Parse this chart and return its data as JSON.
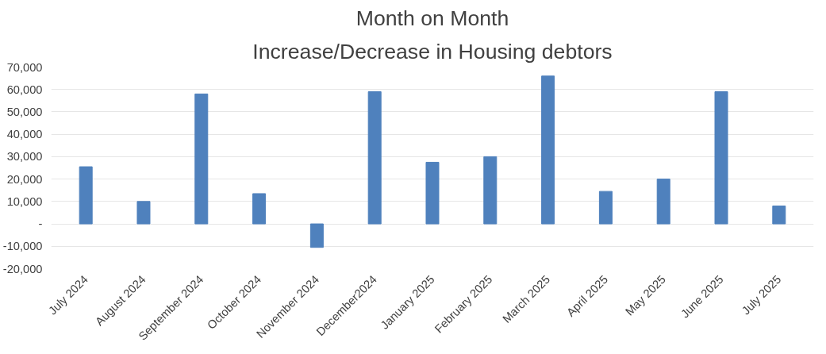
{
  "chart_data": {
    "type": "bar",
    "title": "Month on Month",
    "subtitle": "Increase/Decrease in Housing debtors",
    "categories": [
      "July 2024",
      "August 2024",
      "September 2024",
      "October 2024",
      "November 2024",
      "December2024",
      "January 2025",
      "February 2025",
      "March 2025",
      "April 2025",
      "May 2025",
      "June 2025",
      "July 2025"
    ],
    "values": [
      25500,
      10000,
      58000,
      13500,
      -10500,
      59000,
      27500,
      30000,
      66000,
      14500,
      20000,
      59000,
      8000
    ],
    "color": "#4f81bd",
    "ylim": [
      -20000,
      70000
    ],
    "yticks": [
      {
        "value": -20000,
        "label": "-20,000"
      },
      {
        "value": -10000,
        "label": "-10,000"
      },
      {
        "value": 0,
        "label": "-"
      },
      {
        "value": 10000,
        "label": "10,000"
      },
      {
        "value": 20000,
        "label": "20,000"
      },
      {
        "value": 30000,
        "label": "30,000"
      },
      {
        "value": 40000,
        "label": "40,000"
      },
      {
        "value": 50000,
        "label": "50,000"
      },
      {
        "value": 60000,
        "label": "60,000"
      },
      {
        "value": 70000,
        "label": "70,000"
      }
    ],
    "grid": "y"
  }
}
